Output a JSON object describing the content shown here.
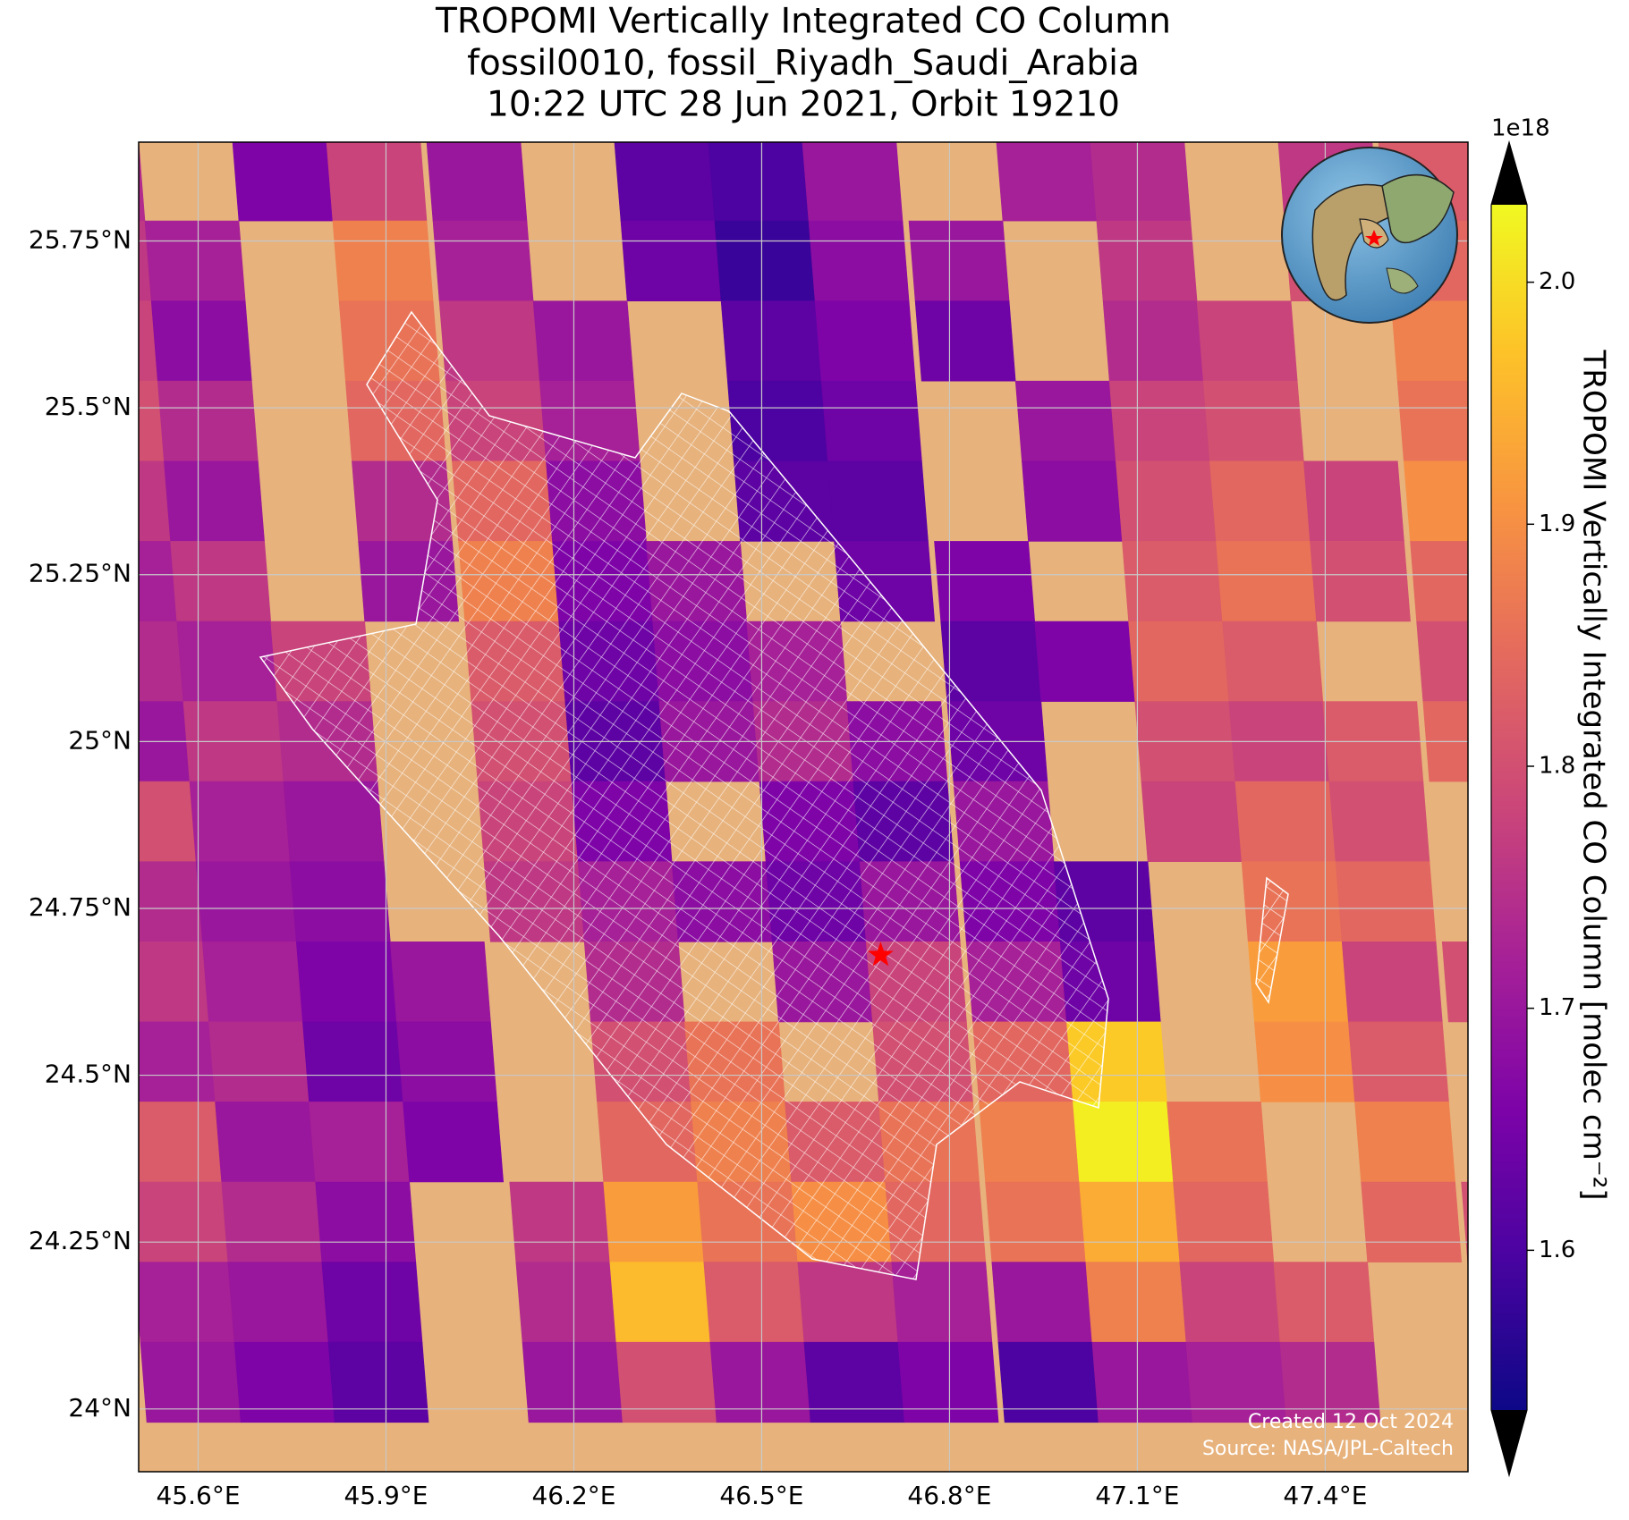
{
  "chart_data": {
    "type": "map",
    "title": [
      "TROPOMI Vertically Integrated CO Column",
      "fossil0010, fossil_Riyadh_Saudi_Arabia",
      "10:22 UTC 28 Jun 2021, Orbit 19210"
    ],
    "xlim": [
      45.505,
      47.628
    ],
    "ylim": [
      23.906,
      25.898
    ],
    "xticks": [
      {
        "value": 45.6,
        "label": "45.6°E"
      },
      {
        "value": 45.9,
        "label": "45.9°E"
      },
      {
        "value": 46.2,
        "label": "46.2°E"
      },
      {
        "value": 46.5,
        "label": "46.5°E"
      },
      {
        "value": 46.8,
        "label": "46.8°E"
      },
      {
        "value": 47.1,
        "label": "47.1°E"
      },
      {
        "value": 47.4,
        "label": "47.4°E"
      }
    ],
    "yticks": [
      {
        "value": 24,
        "label": "24°N"
      },
      {
        "value": 24.25,
        "label": "24.25°N"
      },
      {
        "value": 24.5,
        "label": "24.5°N"
      },
      {
        "value": 24.75,
        "label": "24.75°N"
      },
      {
        "value": 25,
        "label": "25°N"
      },
      {
        "value": 25.25,
        "label": "25.25°N"
      },
      {
        "value": 25.5,
        "label": "25.5°N"
      },
      {
        "value": 25.75,
        "label": "25.75°N"
      }
    ],
    "grid": true,
    "colormap": "plasma",
    "colorbar": {
      "label": "TROPOMI Vertically Integrated CO Column [molec cm⁻²]",
      "offset_label": "1e18",
      "clim": [
        1.534,
        2.032
      ],
      "ticks": [
        1.6,
        1.7,
        1.8,
        1.9,
        {
          "value": 2.0,
          "label": "2.0"
        }
      ]
    },
    "co_grid": {
      "lon": [
        45.43,
        45.58,
        45.73,
        45.88,
        46.04,
        46.19,
        46.34,
        46.49,
        46.64,
        46.8,
        46.95,
        47.1,
        47.25,
        47.4,
        47.56
      ],
      "lat": [
        25.84,
        25.72,
        25.6,
        25.48,
        25.36,
        25.24,
        25.12,
        25.0,
        24.88,
        24.76,
        24.64,
        24.52,
        24.4,
        24.28,
        24.16,
        24.04
      ],
      "values": [
        [
          1.74,
          null,
          1.66,
          1.78,
          1.7,
          null,
          1.62,
          1.6,
          1.7,
          null,
          1.72,
          1.74,
          null,
          1.76,
          1.82
        ],
        [
          1.76,
          1.72,
          null,
          1.88,
          1.72,
          null,
          1.64,
          1.58,
          1.68,
          1.7,
          null,
          1.76,
          null,
          1.8,
          1.84
        ],
        [
          1.78,
          1.68,
          null,
          1.86,
          1.76,
          1.7,
          null,
          1.62,
          1.66,
          1.64,
          null,
          1.74,
          1.78,
          null,
          1.88
        ],
        [
          1.8,
          1.74,
          null,
          1.84,
          1.78,
          1.72,
          null,
          1.6,
          1.64,
          null,
          1.7,
          1.78,
          1.8,
          null,
          1.86
        ],
        [
          1.76,
          1.7,
          null,
          1.74,
          1.84,
          1.68,
          null,
          1.62,
          1.62,
          null,
          1.68,
          1.8,
          1.84,
          1.78,
          1.9
        ],
        [
          1.72,
          1.76,
          null,
          1.7,
          1.88,
          1.66,
          1.7,
          null,
          1.64,
          1.66,
          null,
          1.82,
          1.86,
          1.8,
          1.84
        ],
        [
          1.74,
          1.72,
          1.78,
          null,
          1.82,
          1.64,
          1.68,
          1.72,
          null,
          1.62,
          1.66,
          1.84,
          1.82,
          null,
          1.8
        ],
        [
          1.7,
          1.76,
          1.74,
          null,
          1.8,
          1.62,
          1.7,
          1.74,
          1.68,
          1.64,
          null,
          1.8,
          1.78,
          1.82,
          1.84
        ],
        [
          1.8,
          1.72,
          1.7,
          null,
          1.78,
          1.66,
          null,
          1.66,
          1.62,
          1.7,
          null,
          1.78,
          1.84,
          1.8,
          null
        ],
        [
          1.74,
          1.7,
          1.68,
          null,
          1.76,
          1.72,
          1.68,
          1.64,
          1.7,
          1.66,
          1.62,
          null,
          1.86,
          1.84,
          null
        ],
        [
          1.76,
          1.72,
          1.66,
          1.7,
          null,
          1.74,
          null,
          1.7,
          1.78,
          1.72,
          1.64,
          null,
          1.92,
          1.78,
          1.8
        ],
        [
          1.72,
          1.74,
          1.64,
          1.68,
          null,
          1.8,
          1.86,
          null,
          1.8,
          1.84,
          1.98,
          null,
          1.9,
          1.82,
          null
        ],
        [
          1.82,
          1.7,
          1.72,
          1.66,
          null,
          1.84,
          1.88,
          1.82,
          1.86,
          1.88,
          2.02,
          1.86,
          null,
          1.88,
          null
        ],
        [
          1.78,
          1.74,
          1.68,
          null,
          1.76,
          1.92,
          1.86,
          1.9,
          1.84,
          1.86,
          1.94,
          1.84,
          null,
          1.84,
          1.8
        ],
        [
          1.72,
          1.7,
          1.64,
          null,
          1.74,
          1.96,
          1.82,
          1.76,
          1.72,
          1.7,
          1.88,
          1.78,
          1.82,
          null,
          1.76
        ],
        [
          1.7,
          1.66,
          1.62,
          null,
          1.7,
          1.8,
          1.7,
          1.62,
          1.66,
          1.6,
          1.7,
          1.72,
          1.74,
          null,
          1.72
        ]
      ]
    },
    "site": {
      "lon": 46.69,
      "lat": 24.68
    },
    "footer": [
      "Created 12 Oct 2024",
      "Source: NASA/JPL-Caltech"
    ]
  }
}
